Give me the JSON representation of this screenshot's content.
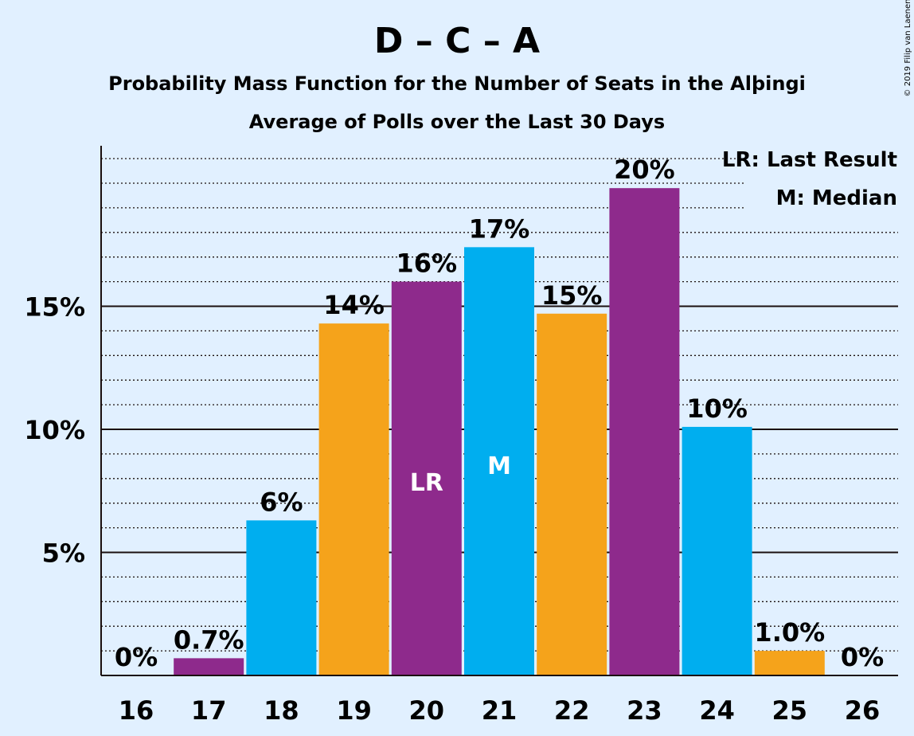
{
  "chart_data": {
    "type": "bar",
    "title": "D – C – A",
    "subtitle": "Probability Mass Function for the Number of Seats in the Alþingi",
    "subtitle2": "Average of Polls over the Last 30 Days",
    "copyright": "© 2019 Filip van Laenen",
    "categories": [
      "16",
      "17",
      "18",
      "19",
      "20",
      "21",
      "22",
      "23",
      "24",
      "25",
      "26"
    ],
    "values": [
      0,
      0.7,
      6.3,
      14.3,
      16.0,
      17.4,
      14.7,
      19.8,
      10.1,
      1.0,
      0
    ],
    "value_labels": [
      "0%",
      "0.7%",
      "6%",
      "14%",
      "16%",
      "17%",
      "15%",
      "20%",
      "10%",
      "1.0%",
      "0%"
    ],
    "bar_colors": [
      "#8e2a8c",
      "#8e2a8c",
      "#00aeef",
      "#f5a31b",
      "#8e2a8c",
      "#00aeef",
      "#f5a31b",
      "#8e2a8c",
      "#00aeef",
      "#f5a31b",
      "#8e2a8c"
    ],
    "inbar_labels": {
      "20": "LR",
      "21": "M"
    },
    "y_ticks": [
      5,
      10,
      15
    ],
    "y_tick_labels": [
      "5%",
      "10%",
      "15%"
    ],
    "ylim": [
      0,
      21.5
    ],
    "minor_grid_step": 1,
    "legend": [
      "LR: Last Result",
      "M: Median"
    ],
    "legend_position": "top-right",
    "grid": true,
    "xlabel": "",
    "ylabel": ""
  }
}
